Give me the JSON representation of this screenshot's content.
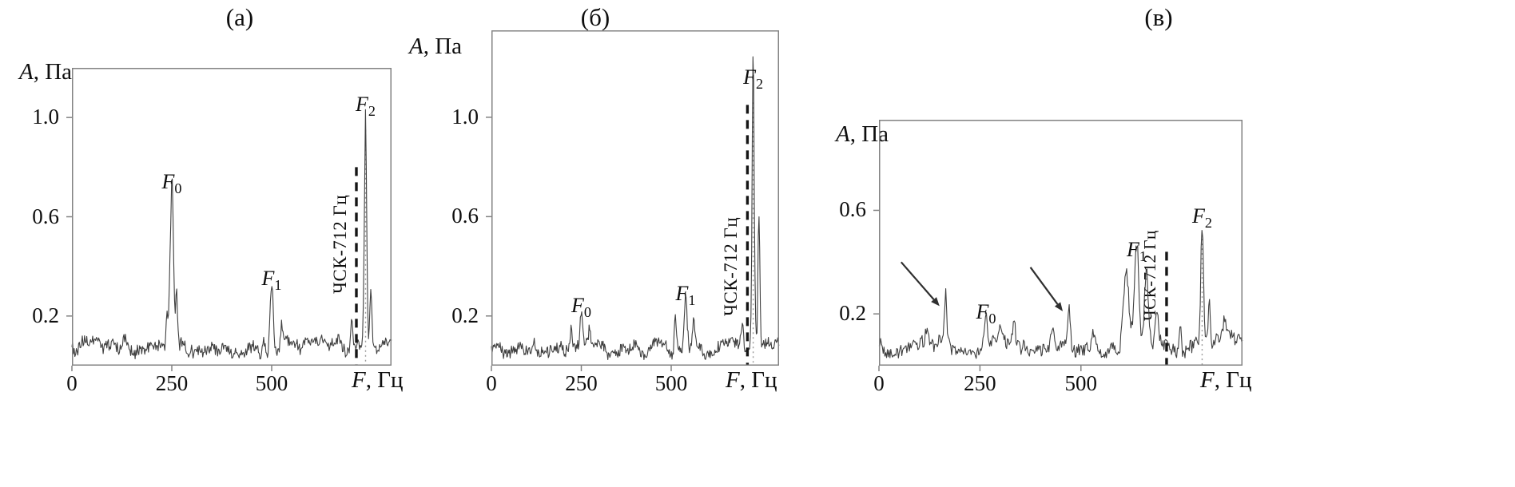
{
  "figure": {
    "background": "#ffffff",
    "line_color": "#3f3f3f",
    "box_color": "#828282",
    "marker_dash_color": "#151515",
    "dotted_guide_color": "#9b9b9b",
    "arrow_color": "#2f2f2f",
    "text_color": "#0e0e0e"
  },
  "chart_data": [
    {
      "type": "line",
      "title": "(а)",
      "ylabel_var": "A",
      "ylabel_rest": ", Па",
      "xlabel_var": "F",
      "xlabel_rest": ", Гц",
      "xlim": [
        0,
        800
      ],
      "ylim": [
        0,
        1.2
      ],
      "xticks": [
        "0",
        "250",
        "500"
      ],
      "yticks": [
        "0.2",
        "0.6",
        "1.0"
      ],
      "grid": false,
      "legend": false,
      "noise_floor": 0.055,
      "peaks": [
        {
          "label_base": "F",
          "label_sub": "0",
          "f": 250,
          "a": 0.66,
          "w": 9
        },
        {
          "label_base": "F",
          "label_sub": "1",
          "f": 500,
          "a": 0.27,
          "w": 8
        },
        {
          "label_base": "F",
          "label_sub": "2",
          "f": 735,
          "a": 0.97,
          "w": 6
        }
      ],
      "sub_peaks": [
        {
          "f": 262,
          "a": 0.2,
          "w": 5
        },
        {
          "f": 238,
          "a": 0.12,
          "w": 5
        },
        {
          "f": 130,
          "a": 0.05,
          "w": 14
        },
        {
          "f": 480,
          "a": 0.07,
          "w": 5
        },
        {
          "f": 525,
          "a": 0.1,
          "w": 5
        },
        {
          "f": 700,
          "a": 0.12,
          "w": 5
        },
        {
          "f": 748,
          "a": 0.26,
          "w": 5
        },
        {
          "f": 380,
          "a": 0.04,
          "w": 12
        }
      ],
      "marker_line": {
        "label": "ЧСК-712 Гц",
        "f": 712,
        "top": 0.8
      },
      "dotted_guide": {
        "f": 735,
        "top": 0.95
      }
    },
    {
      "type": "line",
      "title": "(б)",
      "ylabel_var": "A",
      "ylabel_rest": ", Па",
      "xlabel_var": "F",
      "xlabel_rest": ", Гц",
      "xlim": [
        0,
        800
      ],
      "ylim": [
        0,
        1.35
      ],
      "xticks": [
        "0",
        "250",
        "500"
      ],
      "yticks": [
        "0.2",
        "0.6",
        "1.0"
      ],
      "grid": false,
      "legend": false,
      "noise_floor": 0.05,
      "peaks": [
        {
          "label_base": "F",
          "label_sub": "0",
          "f": 250,
          "a": 0.16,
          "w": 8
        },
        {
          "label_base": "F",
          "label_sub": "1",
          "f": 540,
          "a": 0.21,
          "w": 8
        },
        {
          "label_base": "F",
          "label_sub": "2",
          "f": 728,
          "a": 1.08,
          "w": 6
        }
      ],
      "sub_peaks": [
        {
          "f": 222,
          "a": 0.08,
          "w": 6
        },
        {
          "f": 273,
          "a": 0.07,
          "w": 5
        },
        {
          "f": 512,
          "a": 0.15,
          "w": 6
        },
        {
          "f": 562,
          "a": 0.09,
          "w": 5
        },
        {
          "f": 744,
          "a": 0.52,
          "w": 5
        },
        {
          "f": 698,
          "a": 0.1,
          "w": 6
        },
        {
          "f": 120,
          "a": 0.04,
          "w": 10
        },
        {
          "f": 400,
          "a": 0.04,
          "w": 10
        }
      ],
      "marker_line": {
        "label": "ЧСК-712 Гц",
        "f": 712,
        "top": 1.05
      },
      "dotted_guide": {
        "f": 728,
        "top": 1.06
      }
    },
    {
      "type": "line",
      "title": "(в)",
      "ylabel_var": "A",
      "ylabel_rest": ", Па",
      "xlabel_var": "F",
      "xlabel_rest": ", Гц",
      "xlim": [
        0,
        900
      ],
      "ylim": [
        0,
        0.95
      ],
      "xticks": [
        "0",
        "250",
        "500"
      ],
      "yticks": [
        "0.2",
        "0.6"
      ],
      "grid": false,
      "legend": false,
      "noise_floor": 0.06,
      "peaks": [
        {
          "label_base": "F",
          "label_sub": "0",
          "f": 265,
          "a": 0.13,
          "w": 8
        },
        {
          "label_base": "F",
          "label_sub": "1",
          "f": 638,
          "a": 0.37,
          "w": 10
        },
        {
          "label_base": "F",
          "label_sub": "2",
          "f": 800,
          "a": 0.5,
          "w": 6
        }
      ],
      "sub_peaks": [
        {
          "f": 165,
          "a": 0.19,
          "w": 6
        },
        {
          "f": 470,
          "a": 0.16,
          "w": 7
        },
        {
          "f": 120,
          "a": 0.07,
          "w": 9
        },
        {
          "f": 300,
          "a": 0.1,
          "w": 8
        },
        {
          "f": 335,
          "a": 0.08,
          "w": 7
        },
        {
          "f": 430,
          "a": 0.09,
          "w": 9
        },
        {
          "f": 530,
          "a": 0.08,
          "w": 8
        },
        {
          "f": 612,
          "a": 0.27,
          "w": 13
        },
        {
          "f": 662,
          "a": 0.31,
          "w": 9
        },
        {
          "f": 688,
          "a": 0.15,
          "w": 6
        },
        {
          "f": 745,
          "a": 0.11,
          "w": 5
        },
        {
          "f": 818,
          "a": 0.15,
          "w": 5
        },
        {
          "f": 855,
          "a": 0.06,
          "w": 8
        }
      ],
      "marker_line": {
        "label": "ЧСК-712 Гц",
        "f": 712,
        "top": 0.44
      },
      "dotted_guide": {
        "f": 800,
        "top": 0.49
      },
      "arrows": [
        {
          "from": [
            55,
            0.4
          ],
          "to": [
            150,
            0.23
          ]
        },
        {
          "from": [
            375,
            0.38
          ],
          "to": [
            455,
            0.21
          ]
        }
      ]
    }
  ]
}
